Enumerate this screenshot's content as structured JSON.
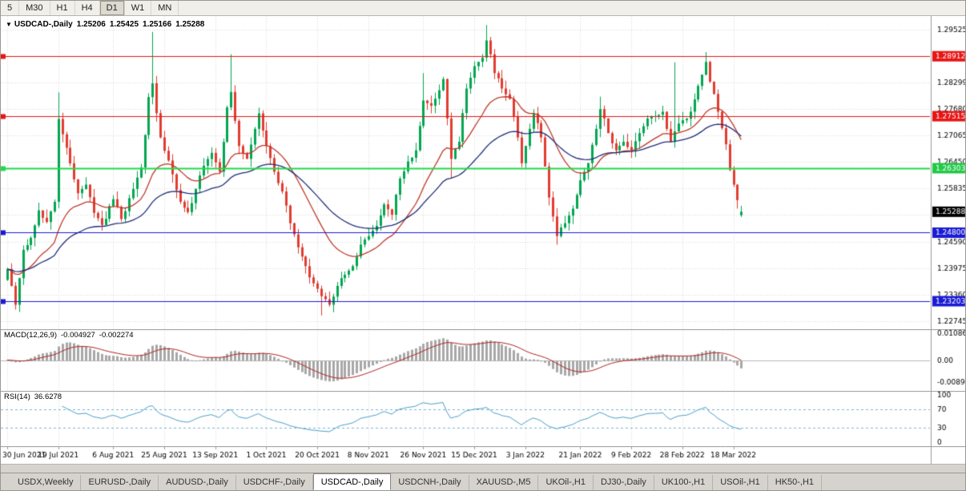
{
  "icons": {
    "chart_dropdown": "▼"
  },
  "toolbar": {
    "timeframes": [
      "5",
      "M30",
      "H1",
      "H4",
      "D1",
      "W1",
      "MN"
    ],
    "active_index": 4
  },
  "chart_header": {
    "symbol": "USDCAD-,Daily",
    "open": "1.25206",
    "high": "1.25425",
    "low": "1.25166",
    "close": "1.25288"
  },
  "chart_data": {
    "type": "candlestick+indicators",
    "symbol": "USDCAD",
    "timeframe": "Daily",
    "colors": {
      "up": "#00a651",
      "down": "#e23b30",
      "grid": "#d8d8d8"
    },
    "price_axis": {
      "min": 1.2255,
      "max": 1.2985,
      "ticks": [
        {
          "v": 1.29525,
          "label": "1.29525"
        },
        {
          "v": 1.28912,
          "label": null
        },
        {
          "v": 1.28299,
          "label": "1.28299"
        },
        {
          "v": 1.2768,
          "label": "1.27680"
        },
        {
          "v": 1.27065,
          "label": "1.27065"
        },
        {
          "v": 1.2645,
          "label": "1.26450"
        },
        {
          "v": 1.25835,
          "label": "1.25835"
        },
        {
          "v": 1.2522,
          "label": null
        },
        {
          "v": 1.2459,
          "label": "1.24590"
        },
        {
          "v": 1.23975,
          "label": "1.23975"
        },
        {
          "v": 1.2336,
          "label": "1.23360"
        },
        {
          "v": 1.22745,
          "label": "1.22745"
        }
      ]
    },
    "hlines": [
      {
        "v": 1.28912,
        "color": "#e81515",
        "w": 1
      },
      {
        "v": 1.27515,
        "color": "#e81515",
        "w": 1
      },
      {
        "v": 1.26303,
        "color": "#21d94c",
        "w": 2
      },
      {
        "v": 1.248,
        "color": "#1b1bd6",
        "w": 1
      },
      {
        "v": 1.23203,
        "color": "#1b1bd6",
        "w": 1
      }
    ],
    "badges": [
      {
        "v": 1.28912,
        "label": "1.28912",
        "bg": "#e81515",
        "fg": "#ffffff"
      },
      {
        "v": 1.27515,
        "label": "1.27515",
        "bg": "#e81515",
        "fg": "#ffffff"
      },
      {
        "v": 1.26303,
        "label": "1.26303",
        "bg": "#21c946",
        "fg": "#ffffff"
      },
      {
        "v": 1.25288,
        "label": "1.25288",
        "bg": "#000000",
        "fg": "#ffffff"
      },
      {
        "v": 1.248,
        "label": "1.24800",
        "bg": "#1b1bd6",
        "fg": "#ffffff"
      },
      {
        "v": 1.23203,
        "label": "1.23203",
        "bg": "#1b1bd6",
        "fg": "#ffffff"
      }
    ],
    "current_price": 1.25288,
    "moving_averages": [
      {
        "period": 20,
        "color": "#c0392b"
      },
      {
        "period": 45,
        "color": "#1f2d7a"
      }
    ],
    "candles": {
      "count": 188,
      "noise": 0.0013,
      "wick": 0.002,
      "last": [
        1.25206,
        1.25425,
        1.25166,
        1.25288
      ],
      "anchors": [
        [
          0,
          1.2395
        ],
        [
          2,
          1.2312
        ],
        [
          4,
          1.244
        ],
        [
          6,
          1.2468
        ],
        [
          8,
          1.2532
        ],
        [
          10,
          1.2505
        ],
        [
          12,
          1.2552
        ],
        [
          13,
          1.2745
        ],
        [
          15,
          1.2678
        ],
        [
          18,
          1.2572
        ],
        [
          20,
          1.2592
        ],
        [
          22,
          1.2526
        ],
        [
          24,
          1.2498
        ],
        [
          27,
          1.2558
        ],
        [
          29,
          1.2512
        ],
        [
          32,
          1.2582
        ],
        [
          34,
          1.2632
        ],
        [
          36,
          1.2796
        ],
        [
          37,
          1.2828
        ],
        [
          39,
          1.2702
        ],
        [
          42,
          1.2616
        ],
        [
          44,
          1.2552
        ],
        [
          46,
          1.2528
        ],
        [
          48,
          1.2582
        ],
        [
          50,
          1.2636
        ],
        [
          52,
          1.2666
        ],
        [
          54,
          1.2622
        ],
        [
          56,
          1.2772
        ],
        [
          57,
          1.2808
        ],
        [
          59,
          1.2682
        ],
        [
          61,
          1.2652
        ],
        [
          63,
          1.2722
        ],
        [
          64,
          1.2758
        ],
        [
          66,
          1.2682
        ],
        [
          68,
          1.2622
        ],
        [
          70,
          1.2576
        ],
        [
          72,
          1.2502
        ],
        [
          74,
          1.2446
        ],
        [
          76,
          1.2402
        ],
        [
          78,
          1.2362
        ],
        [
          80,
          1.2332
        ],
        [
          82,
          1.2312
        ],
        [
          84,
          1.2356
        ],
        [
          86,
          1.2382
        ],
        [
          88,
          1.2402
        ],
        [
          90,
          1.2452
        ],
        [
          92,
          1.2472
        ],
        [
          94,
          1.2496
        ],
        [
          96,
          1.2546
        ],
        [
          98,
          1.2522
        ],
        [
          100,
          1.2606
        ],
        [
          102,
          1.2646
        ],
        [
          104,
          1.2672
        ],
        [
          106,
          1.2788
        ],
        [
          108,
          1.2776
        ],
        [
          110,
          1.2812
        ],
        [
          111,
          1.2838
        ],
        [
          113,
          1.2652
        ],
        [
          115,
          1.2692
        ],
        [
          117,
          1.2816
        ],
        [
          119,
          1.2868
        ],
        [
          121,
          1.2888
        ],
        [
          122,
          1.2928
        ],
        [
          124,
          1.2852
        ],
        [
          126,
          1.2816
        ],
        [
          128,
          1.2792
        ],
        [
          130,
          1.2702
        ],
        [
          131,
          1.2642
        ],
        [
          133,
          1.2722
        ],
        [
          134,
          1.2758
        ],
        [
          136,
          1.2702
        ],
        [
          138,
          1.2562
        ],
        [
          140,
          1.2472
        ],
        [
          142,
          1.2502
        ],
        [
          144,
          1.2536
        ],
        [
          146,
          1.2602
        ],
        [
          148,
          1.2642
        ],
        [
          150,
          1.2722
        ],
        [
          151,
          1.2768
        ],
        [
          153,
          1.2712
        ],
        [
          155,
          1.2672
        ],
        [
          157,
          1.2692
        ],
        [
          159,
          1.2672
        ],
        [
          161,
          1.2712
        ],
        [
          163,
          1.2746
        ],
        [
          165,
          1.2752
        ],
        [
          167,
          1.2762
        ],
        [
          169,
          1.2692
        ],
        [
          170,
          1.2716
        ],
        [
          172,
          1.2742
        ],
        [
          174,
          1.2762
        ],
        [
          176,
          1.2822
        ],
        [
          178,
          1.2878
        ],
        [
          179,
          1.2832
        ],
        [
          181,
          1.2762
        ],
        [
          183,
          1.2686
        ],
        [
          184,
          1.2626
        ],
        [
          185,
          1.2592
        ],
        [
          186,
          1.2556
        ],
        [
          187,
          1.25288
        ]
      ],
      "spikes_high": [
        [
          13,
          1.2807
        ],
        [
          37,
          1.2948
        ],
        [
          57,
          1.2896
        ],
        [
          106,
          1.2852
        ],
        [
          122,
          1.2964
        ],
        [
          151,
          1.2797
        ],
        [
          170,
          1.2877
        ],
        [
          178,
          1.2901
        ]
      ],
      "spikes_low": [
        [
          2,
          1.2302
        ],
        [
          80,
          1.2287
        ],
        [
          113,
          1.2607
        ],
        [
          140,
          1.2452
        ],
        [
          187,
          1.25166
        ]
      ]
    },
    "macd": {
      "label": "MACD(12,26,9)",
      "main_value": "-0.004927",
      "signal_value": "-0.002274",
      "fast": 12,
      "slow": 26,
      "signal": 9,
      "range": [
        -0.0125,
        0.0125
      ],
      "ticks": [
        {
          "v": 0.010865,
          "label": "0.010865"
        },
        {
          "v": 0,
          "label": "0.00"
        },
        {
          "v": -0.00897,
          "label": "-0.00897"
        }
      ],
      "hist_color": "#a8a8a8",
      "line_color": "#b22222"
    },
    "rsi": {
      "label": "RSI(14)",
      "value": "36.6278",
      "period": 14,
      "range": [
        0,
        100
      ],
      "levels": [
        70,
        30
      ],
      "ticks": [
        {
          "v": 100,
          "label": "100"
        },
        {
          "v": 70,
          "label": "70"
        },
        {
          "v": 30,
          "label": "30"
        },
        {
          "v": 0,
          "label": "0"
        }
      ],
      "line_color": "#4a9fc8",
      "level_color": "#79b6d6"
    },
    "x_axis": {
      "labels": [
        "30 Jun 2021",
        "19 Jul 2021",
        "6 Aug 2021",
        "25 Aug 2021",
        "13 Sep 2021",
        "1 Oct 2021",
        "20 Oct 2021",
        "8 Nov 2021",
        "26 Nov 2021",
        "15 Dec 2021",
        "3 Jan 2022",
        "21 Jan 2022",
        "9 Feb 2022",
        "28 Feb 2022",
        "18 Mar 2022"
      ],
      "indices": [
        0,
        13,
        27,
        40,
        53,
        66,
        79,
        92,
        106,
        119,
        132,
        146,
        159,
        172,
        185
      ]
    }
  },
  "tabs": {
    "items": [
      "USDX,Weekly",
      "EURUSD-,Daily",
      "AUDUSD-,Daily",
      "USDCHF-,Daily",
      "USDCAD-,Daily",
      "USDCNH-,Daily",
      "XAUUSD-,M5",
      "UKOil-,H1",
      "DJ30-,Daily",
      "UK100-,H1",
      "USOil-,H1",
      "HK50-,H1"
    ],
    "active_index": 4
  }
}
